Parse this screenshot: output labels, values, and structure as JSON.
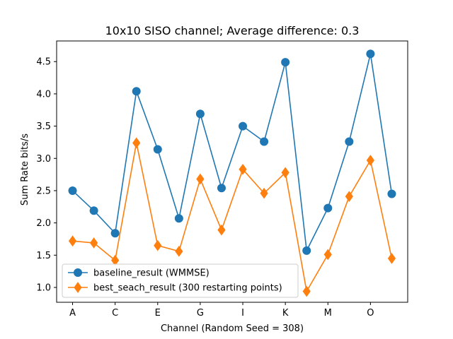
{
  "chart_data": {
    "type": "line",
    "title": "10x10 SISO channel; Average difference: 0.3",
    "xlabel": "Channel (Random Seed = 308)",
    "ylabel": "Sum Rate  bits/s",
    "x_tick_labels": [
      "A",
      "C",
      "E",
      "G",
      "I",
      "K",
      "M",
      "O"
    ],
    "x_tick_positions": [
      0,
      2,
      4,
      6,
      8,
      10,
      12,
      14
    ],
    "xlim": [
      -0.75,
      15.75
    ],
    "ylim": [
      0.77,
      4.82
    ],
    "y_ticks": [
      1.0,
      1.5,
      2.0,
      2.5,
      3.0,
      3.5,
      4.0,
      4.5
    ],
    "y_tick_labels": [
      "1.0",
      "1.5",
      "2.0",
      "2.5",
      "3.0",
      "3.5",
      "4.0",
      "4.5"
    ],
    "grid": false,
    "legend_position": "lower left",
    "x": [
      0,
      1,
      2,
      3,
      4,
      5,
      6,
      7,
      8,
      9,
      10,
      11,
      12,
      13,
      14,
      15
    ],
    "series": [
      {
        "name": "baseline_result (WMMSE)",
        "color": "#1f77b4",
        "marker": "circle",
        "values": [
          2.5,
          2.19,
          1.84,
          4.04,
          3.14,
          2.07,
          3.69,
          2.54,
          3.5,
          3.26,
          4.49,
          1.57,
          2.23,
          3.26,
          4.62,
          2.45
        ]
      },
      {
        "name": "best_seach_result (300 restarting points)",
        "color": "#ff7f0e",
        "marker": "diamond",
        "values": [
          1.72,
          1.69,
          1.42,
          3.24,
          1.65,
          1.56,
          2.68,
          1.89,
          2.83,
          2.46,
          2.78,
          0.94,
          1.51,
          2.41,
          2.97,
          1.45
        ]
      }
    ]
  }
}
